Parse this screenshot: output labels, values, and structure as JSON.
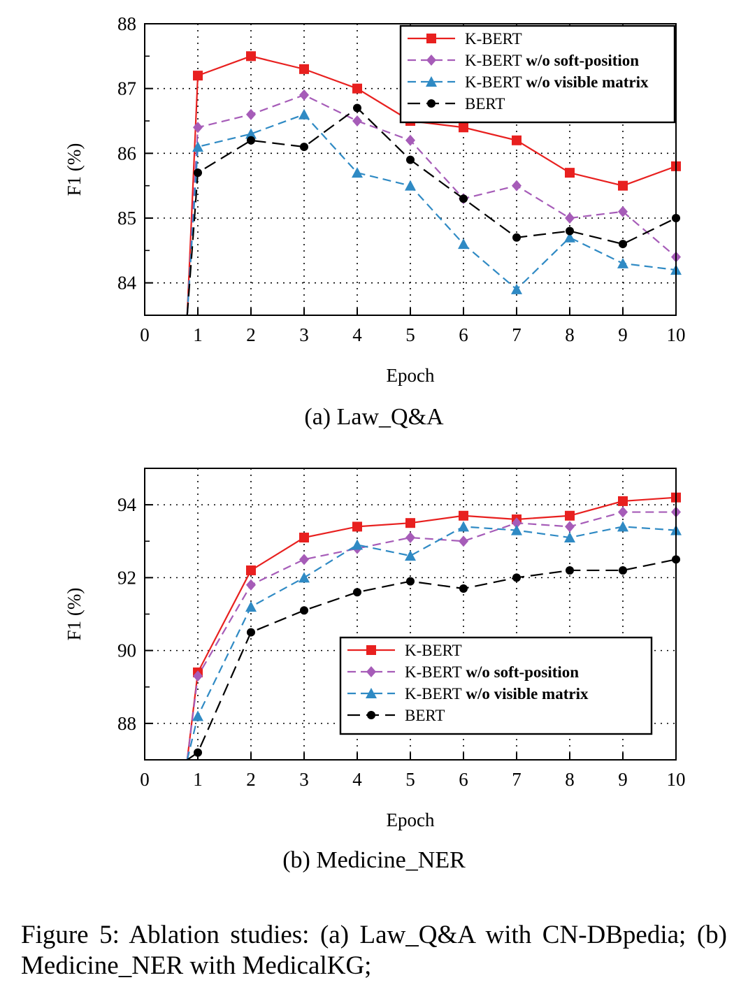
{
  "chart_data": [
    {
      "type": "line",
      "subcaption": "(a) Law_Q&A",
      "xlabel": "Epoch",
      "ylabel": "F1 (%)",
      "xlim": [
        0,
        10
      ],
      "ylim": [
        83.5,
        88
      ],
      "xticks": [
        "0",
        "1",
        "2",
        "3",
        "4",
        "5",
        "6",
        "7",
        "8",
        "9",
        "10"
      ],
      "yticks": [
        "84",
        "85",
        "86",
        "87",
        "88"
      ],
      "grid": true,
      "legend_position": "top-right",
      "x": [
        0.8,
        1,
        2,
        3,
        4,
        5,
        6,
        7,
        8,
        9,
        10
      ],
      "series": [
        {
          "name": "K-BERT",
          "name_suffix": "",
          "color": "#e8201f",
          "dash": "solid",
          "marker": "square",
          "values": [
            83.5,
            87.2,
            87.5,
            87.3,
            87.0,
            86.5,
            86.4,
            86.2,
            85.7,
            85.5,
            85.8
          ]
        },
        {
          "name": "K-BERT",
          "name_suffix": "w/o soft-position",
          "color": "#a65cb8",
          "dash": "dashed",
          "marker": "diamond",
          "values": [
            83.5,
            86.4,
            86.6,
            86.9,
            86.5,
            86.2,
            85.3,
            85.5,
            85.0,
            85.1,
            84.4
          ]
        },
        {
          "name": "K-BERT",
          "name_suffix": "w/o visible matrix",
          "color": "#2f8ac4",
          "dash": "dashed",
          "marker": "triangle",
          "values": [
            83.5,
            86.1,
            86.3,
            86.6,
            85.7,
            85.5,
            84.6,
            83.9,
            84.7,
            84.3,
            84.2
          ]
        },
        {
          "name": "BERT",
          "name_suffix": "",
          "color": "#000000",
          "dash": "longdash",
          "marker": "circle",
          "values": [
            83.5,
            85.7,
            86.2,
            86.1,
            86.7,
            85.9,
            85.3,
            84.7,
            84.8,
            84.6,
            85.0
          ]
        }
      ]
    },
    {
      "type": "line",
      "subcaption": "(b) Medicine_NER",
      "xlabel": "Epoch",
      "ylabel": "F1 (%)",
      "xlim": [
        0,
        10
      ],
      "ylim": [
        87,
        95
      ],
      "xticks": [
        "0",
        "1",
        "2",
        "3",
        "4",
        "5",
        "6",
        "7",
        "8",
        "9",
        "10"
      ],
      "yticks": [
        "88",
        "90",
        "92",
        "94"
      ],
      "grid": true,
      "legend_position": "center-right",
      "x": [
        0.8,
        1,
        2,
        3,
        4,
        5,
        6,
        7,
        8,
        9,
        10
      ],
      "series": [
        {
          "name": "K-BERT",
          "name_suffix": "",
          "color": "#e8201f",
          "dash": "solid",
          "marker": "square",
          "values": [
            87.0,
            89.4,
            92.2,
            93.1,
            93.4,
            93.5,
            93.7,
            93.6,
            93.7,
            94.1,
            94.2
          ]
        },
        {
          "name": "K-BERT",
          "name_suffix": "w/o soft-position",
          "color": "#a65cb8",
          "dash": "dashed",
          "marker": "diamond",
          "values": [
            87.0,
            89.3,
            91.8,
            92.5,
            92.8,
            93.1,
            93.0,
            93.5,
            93.4,
            93.8,
            93.8
          ]
        },
        {
          "name": "K-BERT",
          "name_suffix": "w/o visible matrix",
          "color": "#2f8ac4",
          "dash": "dashed",
          "marker": "triangle",
          "values": [
            87.0,
            88.2,
            91.2,
            92.0,
            92.9,
            92.6,
            93.4,
            93.3,
            93.1,
            93.4,
            93.3
          ]
        },
        {
          "name": "BERT",
          "name_suffix": "",
          "color": "#000000",
          "dash": "longdash",
          "marker": "circle",
          "values": [
            87.0,
            87.2,
            90.5,
            91.1,
            91.6,
            91.9,
            91.7,
            92.0,
            92.2,
            92.2,
            92.5
          ]
        }
      ]
    }
  ],
  "caption": "Figure 5: Ablation studies: (a) Law_Q&A with CN-DBpedia; (b) Medicine_NER with MedicalKG;"
}
